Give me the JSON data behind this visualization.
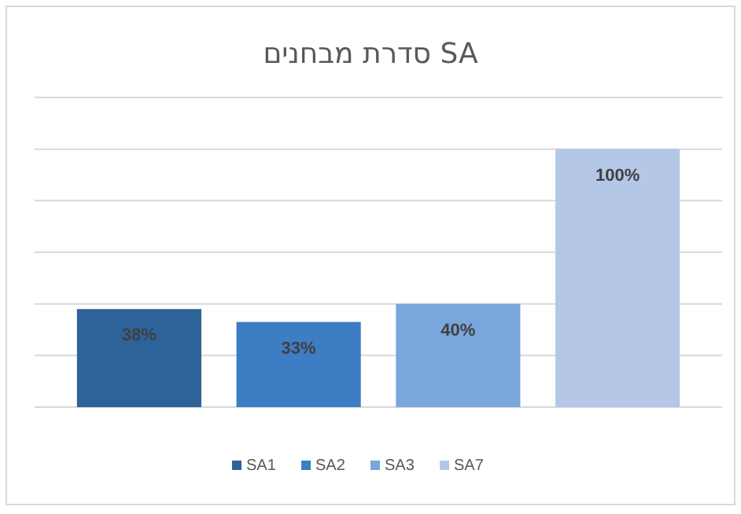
{
  "chart_data": {
    "type": "bar",
    "title": "סדרת מבחנים SA",
    "categories": [
      null
    ],
    "series": [
      {
        "name": "SA1",
        "color": "#2e6399",
        "values": [
          38
        ],
        "value_labels": [
          "38%"
        ]
      },
      {
        "name": "SA2",
        "color": "#3d7dc4",
        "values": [
          33
        ],
        "value_labels": [
          "33%"
        ]
      },
      {
        "name": "SA3",
        "color": "#7aa6dc",
        "values": [
          40
        ],
        "value_labels": [
          "40%"
        ]
      },
      {
        "name": "SA7",
        "color": "#b4c7e7",
        "values": [
          100
        ],
        "value_labels": [
          "100%"
        ]
      }
    ],
    "ylim": [
      0,
      120
    ],
    "yticks": [
      {
        "value": 0,
        "label": null
      },
      {
        "value": 20,
        "label": null
      },
      {
        "value": 40,
        "label": null
      },
      {
        "value": 60,
        "label": null
      },
      {
        "value": 80,
        "label": null
      },
      {
        "value": 100,
        "label": null
      },
      {
        "value": 120,
        "label": null
      }
    ],
    "grid": "y",
    "legend": "bottom"
  }
}
